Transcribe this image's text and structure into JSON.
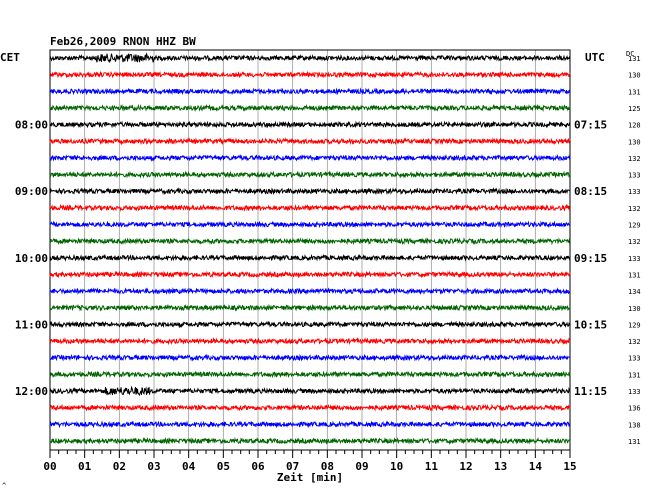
{
  "chart_data": {
    "type": "line",
    "title": "Feb26,2009   RNON HHZ BW",
    "left_timezone": "CET",
    "right_timezone": "UTC",
    "dc_label": "DC",
    "xlabel": "Zeit [min]",
    "xlim": [
      0,
      15
    ],
    "x_ticks": [
      "00",
      "01",
      "02",
      "03",
      "04",
      "05",
      "06",
      "07",
      "08",
      "09",
      "10",
      "11",
      "12",
      "13",
      "14",
      "15"
    ],
    "trace_colors": [
      "#000000",
      "#ff0000",
      "#0000ff",
      "#006400"
    ],
    "left_hour_labels": [
      {
        "trace": 4,
        "label": "08:00"
      },
      {
        "trace": 8,
        "label": "09:00"
      },
      {
        "trace": 12,
        "label": "10:00"
      },
      {
        "trace": 16,
        "label": "11:00"
      },
      {
        "trace": 20,
        "label": "12:00"
      }
    ],
    "right_hour_labels": [
      {
        "trace": 4,
        "label": "07:15"
      },
      {
        "trace": 8,
        "label": "08:15"
      },
      {
        "trace": 12,
        "label": "09:15"
      },
      {
        "trace": 16,
        "label": "10:15"
      },
      {
        "trace": 20,
        "label": "11:15"
      }
    ],
    "dc_values": [
      131,
      130,
      131,
      125,
      128,
      130,
      132,
      133,
      133,
      132,
      129,
      132,
      133,
      131,
      134,
      130,
      129,
      132,
      133,
      131,
      133,
      136,
      138,
      131
    ],
    "trace_count": 24
  },
  "footer_mark": "^"
}
